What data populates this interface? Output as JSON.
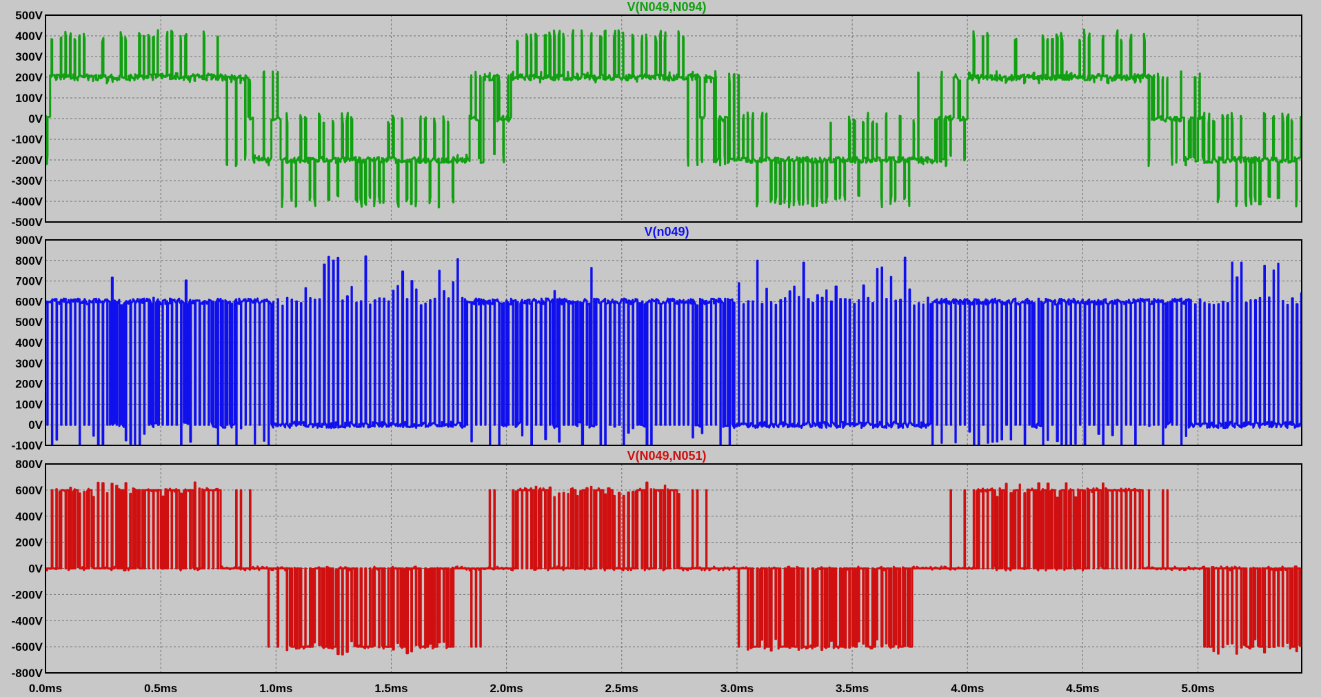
{
  "chart_data": {
    "type": "line",
    "x_unit": "ms",
    "x_ticks": [
      "0.0ms",
      "0.5ms",
      "1.0ms",
      "1.5ms",
      "2.0ms",
      "2.5ms",
      "3.0ms",
      "3.5ms",
      "4.0ms",
      "4.5ms",
      "5.0ms"
    ],
    "xlim": [
      0,
      5.45
    ],
    "grid": true,
    "background": "#c8c8c8",
    "panels": [
      {
        "title": "V(N049,N094)",
        "color": "#11a011",
        "ylim": [
          -500,
          500
        ],
        "y_ticks": [
          "-500V",
          "-400V",
          "-300V",
          "-200V",
          "-100V",
          "0V",
          "100V",
          "200V",
          "300V",
          "400V",
          "500V"
        ],
        "period_ms": 2.0,
        "levels": [
          -400,
          -200,
          0,
          200,
          400
        ],
        "base": 200,
        "switching": "five-level PWM"
      },
      {
        "title": "V(n049)",
        "color": "#1010ee",
        "ylim": [
          -100,
          900
        ],
        "y_ticks": [
          "-100V",
          "0V",
          "100V",
          "200V",
          "300V",
          "400V",
          "500V",
          "600V",
          "700V",
          "800V",
          "900V"
        ],
        "period_ms": 2.0,
        "levels": [
          0,
          600
        ],
        "spike_max": 830,
        "spike_min": -190,
        "switching": "two-level PWM"
      },
      {
        "title": "V(N049,N051)",
        "color": "#d01010",
        "ylim": [
          -800,
          800
        ],
        "y_ticks": [
          "-800V",
          "-600V",
          "-400V",
          "-200V",
          "0V",
          "200V",
          "400V",
          "600V",
          "800V"
        ],
        "period_ms": 2.0,
        "levels": [
          -600,
          0,
          600
        ],
        "switching": "three-level PWM"
      }
    ]
  }
}
